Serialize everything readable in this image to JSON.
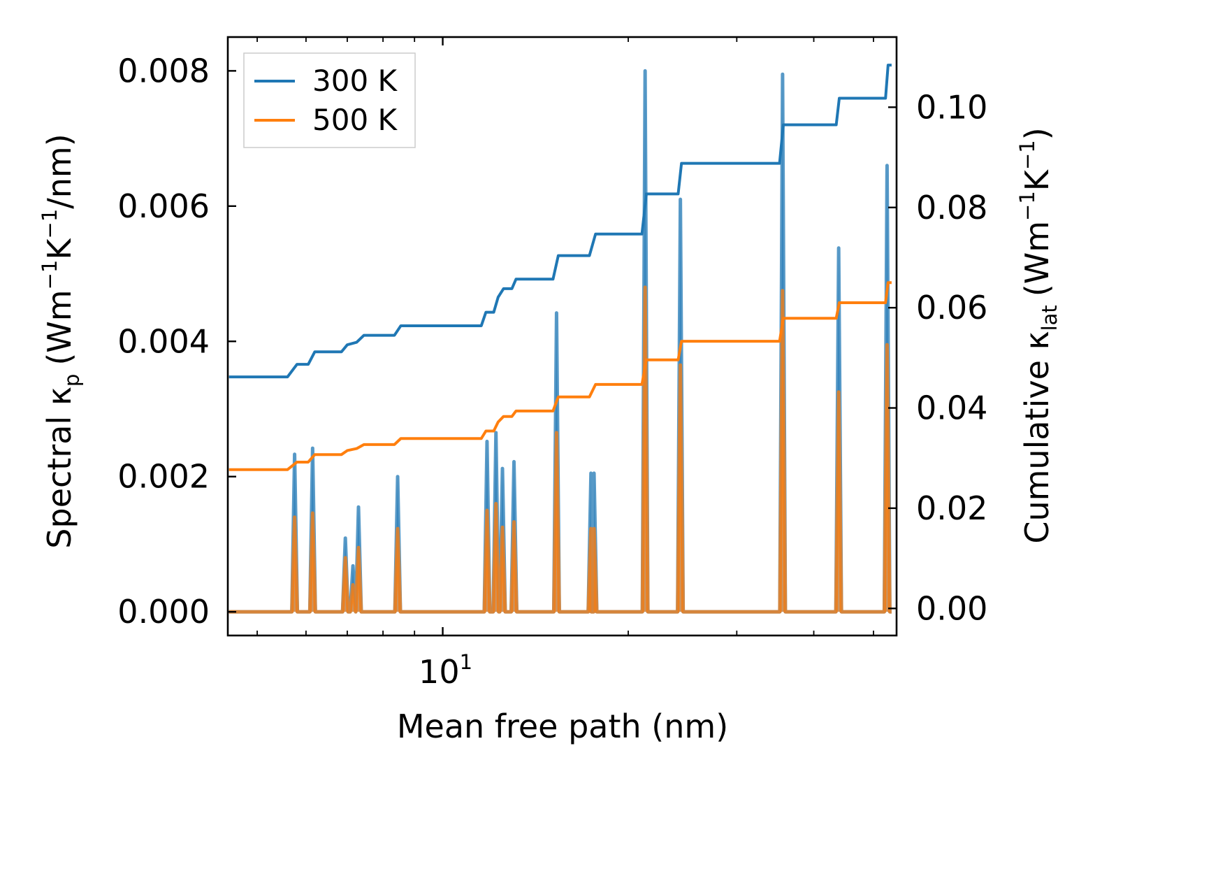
{
  "chart_data": {
    "type": "line",
    "title": "",
    "xlabel": "Mean free path (nm)",
    "xscale": "log",
    "xlim": [
      4.48,
      54.5
    ],
    "x_tick_label": {
      "base": "10",
      "exp": "1",
      "value": 10
    },
    "x_minor_ticks": [
      5,
      6,
      7,
      8,
      9,
      20,
      30,
      40,
      50
    ],
    "ylabel_left": {
      "main": "Spectral κ",
      "sub": "p",
      "unit_pre": "(Wm",
      "sup1": "−1",
      "unit_mid": "K",
      "sup2": "−1",
      "unit_post": "/nm)"
    },
    "ylabel_right": {
      "main": "Cumulative κ",
      "sub": "lat",
      "unit_pre": "(Wm",
      "sup1": "−1",
      "unit_mid": "K",
      "sup2": "−1",
      "unit_post": ")"
    },
    "ylim_left": [
      -0.00035,
      0.0085
    ],
    "ylim_right": [
      -0.0054,
      0.114
    ],
    "yticks_left": [
      "0.000",
      "0.002",
      "0.004",
      "0.006",
      "0.008"
    ],
    "yticks_right": [
      "0.00",
      "0.02",
      "0.04",
      "0.06",
      "0.08",
      "0.10"
    ],
    "legend": {
      "position": "upper-left",
      "entries": [
        "300 K",
        "500 K"
      ]
    },
    "spectral_peaks_x": [
      5.75,
      6.15,
      6.95,
      7.15,
      7.3,
      8.45,
      11.8,
      12.2,
      12.5,
      13.05,
      15.3,
      17.4,
      17.6,
      21.3,
      24.3,
      35.6,
      43.9,
      52.6
    ],
    "series": [
      {
        "name": "300 K",
        "color": "#1f77b4",
        "spectral_peaks": [
          0.00233,
          0.00242,
          0.00109,
          0.00068,
          0.00155,
          0.002,
          0.00252,
          0.00265,
          0.00212,
          0.00222,
          0.00442,
          0.00205,
          0.00205,
          0.008,
          0.0061,
          0.00795,
          0.00538,
          0.0066
        ],
        "cumulative": {
          "x": [
            4.5,
            5.6,
            5.8,
            6.05,
            6.2,
            6.85,
            7.0,
            7.25,
            7.45,
            8.35,
            8.55,
            11.55,
            11.75,
            12.1,
            12.3,
            12.55,
            12.95,
            13.15,
            15.1,
            15.4,
            17.3,
            17.7,
            21.05,
            21.4,
            24.1,
            24.4,
            35.2,
            35.7,
            43.5,
            44.0,
            52.3,
            52.8,
            53.5
          ],
          "y": [
            0.0462,
            0.0462,
            0.0487,
            0.0487,
            0.0512,
            0.0512,
            0.0526,
            0.0531,
            0.0545,
            0.0545,
            0.0564,
            0.0564,
            0.0591,
            0.0591,
            0.0621,
            0.0638,
            0.0638,
            0.0657,
            0.0657,
            0.0704,
            0.0704,
            0.0747,
            0.0747,
            0.0827,
            0.0827,
            0.0888,
            0.0888,
            0.0965,
            0.0965,
            0.1018,
            0.1018,
            0.1084,
            0.1084
          ]
        }
      },
      {
        "name": "500 K",
        "color": "#ff7f0e",
        "spectral_peaks": [
          0.0014,
          0.00146,
          0.0008,
          0.0004,
          0.00095,
          0.00123,
          0.0015,
          0.0016,
          0.00125,
          0.00133,
          0.00265,
          0.00123,
          0.00123,
          0.0048,
          0.00365,
          0.00475,
          0.00325,
          0.00395
        ],
        "cumulative": {
          "x": [
            4.5,
            5.6,
            5.8,
            6.05,
            6.2,
            6.85,
            7.0,
            7.25,
            7.45,
            8.35,
            8.55,
            11.55,
            11.75,
            12.1,
            12.3,
            12.55,
            12.95,
            13.15,
            15.1,
            15.4,
            17.3,
            17.7,
            21.05,
            21.4,
            24.1,
            24.4,
            35.2,
            35.7,
            43.5,
            44.0,
            52.3,
            52.8,
            53.5
          ],
          "y": [
            0.0277,
            0.0277,
            0.0292,
            0.0292,
            0.0307,
            0.0307,
            0.0315,
            0.0319,
            0.0327,
            0.0327,
            0.0339,
            0.0339,
            0.0354,
            0.0354,
            0.0372,
            0.0383,
            0.0383,
            0.0394,
            0.0394,
            0.0422,
            0.0422,
            0.0447,
            0.0447,
            0.0496,
            0.0496,
            0.0533,
            0.0533,
            0.0579,
            0.0579,
            0.061,
            0.061,
            0.065,
            0.065
          ]
        }
      }
    ]
  }
}
